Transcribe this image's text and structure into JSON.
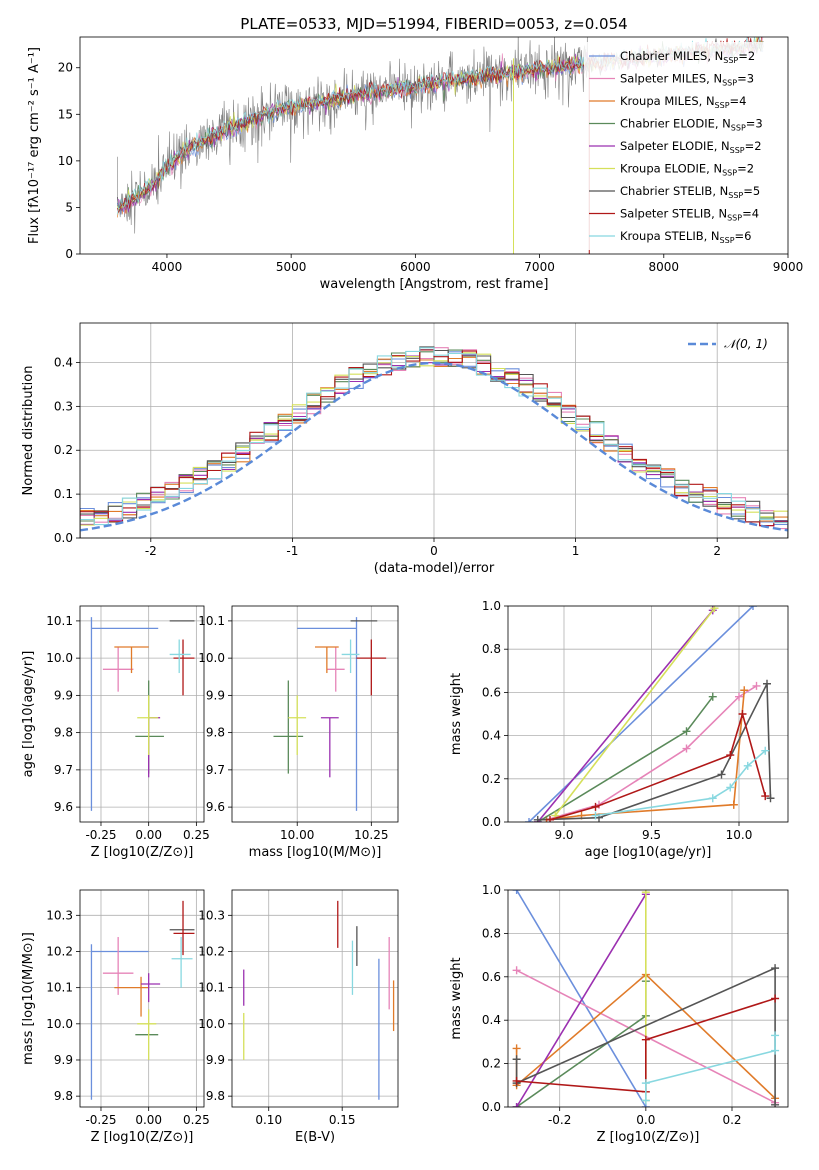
{
  "title": "PLATE=0533, MJD=51994, FIBERID=0053, z=0.054",
  "colors": {
    "Chabrier MILES": "#6b8fdc",
    "Salpeter MILES": "#e684b8",
    "Kroupa MILES": "#e07b2a",
    "Chabrier ELODIE": "#5a8a5a",
    "Salpeter ELODIE": "#9b30b0",
    "Kroupa ELODIE": "#d5e05a",
    "Chabrier STELIB": "#555555",
    "Salpeter STELIB": "#b01818",
    "Kroupa STELIB": "#88d8e0",
    "normal": "#5a8ad8",
    "data": "#808080"
  },
  "chart_data": [
    {
      "id": "spectrum",
      "type": "line",
      "xlabel": "wavelength [Angstrom, rest frame]",
      "ylabel": "Flux [fλ10⁻¹⁷ erg cm⁻² s⁻¹ A⁻¹]",
      "xlim": [
        3300,
        9000
      ],
      "ylim": [
        0,
        23.3
      ],
      "xticks": [
        4000,
        5000,
        6000,
        7000,
        8000,
        9000
      ],
      "yticks": [
        0,
        5,
        10,
        15,
        20
      ],
      "legend_position": "right",
      "legend": [
        {
          "name": "Chabrier MILES",
          "nssp": 2
        },
        {
          "name": "Salpeter MILES",
          "nssp": 3
        },
        {
          "name": "Kroupa MILES",
          "nssp": 4
        },
        {
          "name": "Chabrier ELODIE",
          "nssp": 3
        },
        {
          "name": "Salpeter ELODIE",
          "nssp": 2
        },
        {
          "name": "Kroupa ELODIE",
          "nssp": 2
        },
        {
          "name": "Chabrier STELIB",
          "nssp": 5
        },
        {
          "name": "Salpeter STELIB",
          "nssp": 4
        },
        {
          "name": "Kroupa STELIB",
          "nssp": 6
        }
      ],
      "continuum": {
        "x": [
          3600,
          3750,
          3900,
          4000,
          4200,
          4500,
          4800,
          5000,
          5300,
          5600,
          6000,
          6300,
          6600,
          7000,
          7400,
          8000,
          8500,
          8800
        ],
        "y": [
          5.0,
          6.0,
          7.5,
          9.5,
          11.5,
          13.5,
          15.0,
          15.8,
          16.5,
          17.2,
          18.0,
          18.6,
          19.2,
          19.8,
          20.5,
          21.3,
          22.0,
          22.5
        ]
      },
      "data_range": [
        3600,
        7400
      ],
      "model_range": [
        3600,
        8800
      ]
    },
    {
      "id": "residuals",
      "type": "histogram",
      "xlabel": "(data-model)/error",
      "ylabel": "Normed distribution",
      "xlim": [
        -2.5,
        2.5
      ],
      "ylim": [
        0,
        0.49
      ],
      "xticks": [
        -2,
        -1,
        0,
        1,
        2
      ],
      "yticks": [
        0.0,
        0.1,
        0.2,
        0.3,
        0.4
      ],
      "legend_label": "𝒩(0, 1)",
      "legend_position": "top-right",
      "bin_start": -2.5,
      "bin_width": 0.1
    },
    {
      "id": "age_vs_Z",
      "type": "errorbar",
      "xlabel": "Z [log10(Z/Z⊙)]",
      "ylabel": "age [log10(age/yr)]",
      "xlim": [
        -0.36,
        0.29
      ],
      "ylim": [
        9.56,
        10.14
      ],
      "xticks": [
        -0.25,
        0.0,
        0.25
      ],
      "yticks": [
        9.6,
        9.7,
        9.8,
        9.9,
        10.0,
        10.1
      ],
      "points": [
        {
          "model": "Chabrier MILES",
          "x": -0.3,
          "y": 10.08,
          "xerr": [
            0.0,
            0.0
          ],
          "yerr": [
            0.49,
            0.03
          ]
        },
        {
          "model": "Chabrier MILES",
          "x": 0.0,
          "y": 10.08,
          "xerr": [
            0.3,
            0.05
          ],
          "yerr": [
            0.0,
            0.0
          ]
        },
        {
          "model": "Salpeter MILES",
          "x": -0.16,
          "y": 9.97,
          "xerr": [
            0.08,
            0.08
          ],
          "yerr": [
            0.06,
            0.06
          ]
        },
        {
          "model": "Kroupa MILES",
          "x": -0.09,
          "y": 10.03,
          "xerr": [
            0.09,
            0.09
          ],
          "yerr": [
            0.07,
            0.0
          ]
        },
        {
          "model": "Chabrier ELODIE",
          "x": 0.0,
          "y": 9.79,
          "xerr": [
            0.07,
            0.08
          ],
          "yerr": [
            0.1,
            0.15
          ]
        },
        {
          "model": "Salpeter ELODIE",
          "x": 0.0,
          "y": 9.84,
          "xerr": [
            0.0,
            0.06
          ],
          "yerr": [
            0.16,
            0.0
          ]
        },
        {
          "model": "Kroupa ELODIE",
          "x": 0.0,
          "y": 9.84,
          "xerr": [
            0.06,
            0.05
          ],
          "yerr": [
            0.1,
            0.06
          ]
        },
        {
          "model": "Chabrier STELIB",
          "x": 0.18,
          "y": 10.1,
          "xerr": [
            0.07,
            0.06
          ],
          "yerr": [
            0.0,
            0.0
          ]
        },
        {
          "model": "Salpeter STELIB",
          "x": 0.18,
          "y": 10.0,
          "xerr": [
            0.05,
            0.06
          ],
          "yerr": [
            0.1,
            0.05
          ]
        },
        {
          "model": "Kroupa STELIB",
          "x": 0.16,
          "y": 10.01,
          "xerr": [
            0.05,
            0.06
          ],
          "yerr": [
            0.05,
            0.04
          ]
        }
      ]
    },
    {
      "id": "age_vs_mass",
      "type": "errorbar",
      "xlabel": "mass [log10(M/M⊙)]",
      "xlim": [
        9.78,
        10.34
      ],
      "ylim": [
        9.56,
        10.14
      ],
      "xticks": [
        10.0,
        10.25
      ],
      "yticks": [
        9.6,
        9.7,
        9.8,
        9.9,
        10.0,
        10.1
      ],
      "points": [
        {
          "model": "Chabrier MILES",
          "x": 10.2,
          "y": 10.08,
          "xerr": [
            0.2,
            0.0
          ],
          "yerr": [
            0.49,
            0.03
          ]
        },
        {
          "model": "Salpeter MILES",
          "x": 10.13,
          "y": 9.97,
          "xerr": [
            0.03,
            0.03
          ],
          "yerr": [
            0.06,
            0.06
          ]
        },
        {
          "model": "Kroupa MILES",
          "x": 10.1,
          "y": 10.03,
          "xerr": [
            0.04,
            0.04
          ],
          "yerr": [
            0.07,
            0.0
          ]
        },
        {
          "model": "Chabrier ELODIE",
          "x": 9.97,
          "y": 9.79,
          "xerr": [
            0.05,
            0.05
          ],
          "yerr": [
            0.1,
            0.15
          ]
        },
        {
          "model": "Salpeter ELODIE",
          "x": 10.11,
          "y": 9.84,
          "xerr": [
            0.03,
            0.03
          ],
          "yerr": [
            0.16,
            0.0
          ]
        },
        {
          "model": "Kroupa ELODIE",
          "x": 10.0,
          "y": 9.84,
          "xerr": [
            0.03,
            0.03
          ],
          "yerr": [
            0.1,
            0.06
          ]
        },
        {
          "model": "Chabrier STELIB",
          "x": 10.22,
          "y": 10.1,
          "xerr": [
            0.04,
            0.05
          ],
          "yerr": [
            0.0,
            0.0
          ]
        },
        {
          "model": "Salpeter STELIB",
          "x": 10.25,
          "y": 10.0,
          "xerr": [
            0.05,
            0.05
          ],
          "yerr": [
            0.1,
            0.05
          ]
        },
        {
          "model": "Kroupa STELIB",
          "x": 10.18,
          "y": 10.01,
          "xerr": [
            0.03,
            0.03
          ],
          "yerr": [
            0.05,
            0.04
          ]
        }
      ]
    },
    {
      "id": "weight_vs_age",
      "type": "line",
      "xlabel": "age [log10(age/yr)]",
      "ylabel": "mass weight",
      "xlim": [
        8.68,
        10.28
      ],
      "ylim": [
        0,
        1.0
      ],
      "xticks": [
        9.0,
        9.5,
        10.0
      ],
      "yticks": [
        0.0,
        0.2,
        0.4,
        0.6,
        0.8,
        1.0
      ],
      "series": [
        {
          "model": "Chabrier MILES",
          "x": [
            8.8,
            10.08
          ],
          "y": [
            0.0,
            1.0
          ]
        },
        {
          "model": "Salpeter MILES",
          "x": [
            8.9,
            9.2,
            9.7,
            10.0,
            10.1
          ],
          "y": [
            0.01,
            0.08,
            0.34,
            0.58,
            0.63
          ]
        },
        {
          "model": "Kroupa MILES",
          "x": [
            8.9,
            9.1,
            9.97,
            10.03,
            9.97
          ],
          "y": [
            0.01,
            0.03,
            0.08,
            0.61,
            0.08
          ]
        },
        {
          "model": "Chabrier ELODIE",
          "x": [
            8.85,
            9.7,
            9.85
          ],
          "y": [
            0.0,
            0.42,
            0.58
          ]
        },
        {
          "model": "Salpeter ELODIE",
          "x": [
            8.85,
            9.85
          ],
          "y": [
            0.0,
            0.98
          ]
        },
        {
          "model": "Kroupa ELODIE",
          "x": [
            8.95,
            9.86
          ],
          "y": [
            0.03,
            0.99
          ]
        },
        {
          "model": "Chabrier STELIB",
          "x": [
            8.85,
            9.2,
            9.9,
            10.16,
            10.18
          ],
          "y": [
            0.01,
            0.02,
            0.22,
            0.64,
            0.11
          ]
        },
        {
          "model": "Salpeter STELIB",
          "x": [
            8.92,
            9.18,
            9.95,
            10.02,
            10.15
          ],
          "y": [
            0.01,
            0.07,
            0.31,
            0.5,
            0.12
          ]
        },
        {
          "model": "Kroupa STELIB",
          "x": [
            9.18,
            9.85,
            9.95,
            10.05,
            10.15
          ],
          "y": [
            0.03,
            0.11,
            0.16,
            0.26,
            0.33
          ]
        }
      ]
    },
    {
      "id": "mass_vs_Z",
      "type": "errorbar",
      "xlabel": "Z [log10(Z/Z⊙)]",
      "ylabel": "mass [log10(M/M⊙)]",
      "xlim": [
        -0.36,
        0.29
      ],
      "ylim": [
        9.77,
        10.37
      ],
      "xticks": [
        -0.25,
        0.0,
        0.25
      ],
      "yticks": [
        9.8,
        9.9,
        10.0,
        10.1,
        10.2,
        10.3
      ],
      "points": [
        {
          "model": "Chabrier MILES",
          "x": -0.3,
          "y": 10.2,
          "xerr": [
            0.0,
            0.3
          ],
          "yerr": [
            0.41,
            0.02
          ]
        },
        {
          "model": "Salpeter MILES",
          "x": -0.16,
          "y": 10.14,
          "xerr": [
            0.08,
            0.08
          ],
          "yerr": [
            0.06,
            0.1
          ]
        },
        {
          "model": "Kroupa MILES",
          "x": -0.09,
          "y": 10.1,
          "xerr": [
            0.09,
            0.09
          ],
          "yerr": [
            0.0,
            0.0
          ]
        },
        {
          "model": "Kroupa MILES",
          "x": -0.04,
          "y": 10.1,
          "xerr": [
            0.0,
            0.0
          ],
          "yerr": [
            0.08,
            0.03
          ]
        },
        {
          "model": "Chabrier ELODIE",
          "x": 0.0,
          "y": 9.97,
          "xerr": [
            0.07,
            0.05
          ],
          "yerr": [
            0.0,
            0.0
          ]
        },
        {
          "model": "Salpeter ELODIE",
          "x": 0.0,
          "y": 10.11,
          "xerr": [
            0.04,
            0.06
          ],
          "yerr": [
            0.05,
            0.03
          ]
        },
        {
          "model": "Kroupa ELODIE",
          "x": 0.0,
          "y": 10.0,
          "xerr": [
            0.06,
            0.04
          ],
          "yerr": [
            0.1,
            0.04
          ]
        },
        {
          "model": "Chabrier STELIB",
          "x": 0.18,
          "y": 10.26,
          "xerr": [
            0.07,
            0.06
          ],
          "yerr": [
            0.0,
            0.0
          ]
        },
        {
          "model": "Salpeter STELIB",
          "x": 0.18,
          "y": 10.25,
          "xerr": [
            0.05,
            0.06
          ],
          "yerr": [
            0.06,
            0.09
          ]
        },
        {
          "model": "Kroupa STELIB",
          "x": 0.17,
          "y": 10.18,
          "xerr": [
            0.05,
            0.06
          ],
          "yerr": [
            0.08,
            0.06
          ]
        }
      ]
    },
    {
      "id": "mass_vs_ebv",
      "type": "errorbar",
      "xlabel": "E(B-V)",
      "xlim": [
        0.075,
        0.188
      ],
      "ylim": [
        9.77,
        10.37
      ],
      "xticks": [
        0.1,
        0.15
      ],
      "yticks": [
        9.8,
        9.9,
        10.0,
        10.1,
        10.2,
        10.3
      ],
      "points": [
        {
          "model": "Chabrier MILES",
          "x": 0.175,
          "y": 10.0,
          "xerr": [
            0.0,
            0.0
          ],
          "yerr": [
            0.21,
            0.18
          ]
        },
        {
          "model": "Salpeter MILES",
          "x": 0.182,
          "y": 10.14,
          "xerr": [
            0.0,
            0.0
          ],
          "yerr": [
            0.1,
            0.1
          ]
        },
        {
          "model": "Kroupa MILES",
          "x": 0.185,
          "y": 10.05,
          "xerr": [
            0.0,
            0.0
          ],
          "yerr": [
            0.07,
            0.07
          ]
        },
        {
          "model": "Salpeter ELODIE",
          "x": 0.083,
          "y": 10.1,
          "xerr": [
            0.0,
            0.0
          ],
          "yerr": [
            0.05,
            0.05
          ]
        },
        {
          "model": "Kroupa ELODIE",
          "x": 0.083,
          "y": 9.96,
          "xerr": [
            0.0,
            0.0
          ],
          "yerr": [
            0.06,
            0.07
          ]
        },
        {
          "model": "Salpeter STELIB",
          "x": 0.147,
          "y": 10.27,
          "xerr": [
            0.0,
            0.0
          ],
          "yerr": [
            0.06,
            0.07
          ]
        },
        {
          "model": "Chabrier STELIB",
          "x": 0.16,
          "y": 10.21,
          "xerr": [
            0.0,
            0.0
          ],
          "yerr": [
            0.05,
            0.06
          ]
        },
        {
          "model": "Kroupa STELIB",
          "x": 0.157,
          "y": 10.17,
          "xerr": [
            0.0,
            0.0
          ],
          "yerr": [
            0.09,
            0.06
          ]
        }
      ]
    },
    {
      "id": "weight_vs_Z",
      "type": "line",
      "xlabel": "Z [log10(Z/Z⊙)]",
      "ylabel": "mass weight",
      "xlim": [
        -0.32,
        0.33
      ],
      "ylim": [
        0,
        1.0
      ],
      "xticks": [
        -0.2,
        0.0,
        0.2
      ],
      "yticks": [
        0.0,
        0.2,
        0.4,
        0.6,
        0.8,
        1.0
      ],
      "series": [
        {
          "model": "Chabrier MILES",
          "x": [
            -0.3,
            0.0
          ],
          "y": [
            1.0,
            0.0
          ]
        },
        {
          "model": "Salpeter MILES",
          "x": [
            -0.3,
            0.3
          ],
          "y": [
            0.63,
            0.02
          ]
        },
        {
          "model": "Kroupa MILES",
          "x": [
            -0.3,
            -0.3,
            0.0,
            0.3
          ],
          "y": [
            0.27,
            0.1,
            0.61,
            0.04
          ]
        },
        {
          "model": "Chabrier ELODIE",
          "x": [
            -0.3,
            0.0,
            0.0
          ],
          "y": [
            0.0,
            0.42,
            0.58
          ]
        },
        {
          "model": "Salpeter ELODIE",
          "x": [
            -0.3,
            0.0
          ],
          "y": [
            0.0,
            0.98
          ]
        },
        {
          "model": "Kroupa ELODIE",
          "x": [
            0.0,
            0.0
          ],
          "y": [
            0.03,
            0.99
          ]
        },
        {
          "model": "Chabrier STELIB",
          "x": [
            -0.3,
            -0.3,
            0.3,
            0.3
          ],
          "y": [
            0.22,
            0.11,
            0.64,
            0.01
          ]
        },
        {
          "model": "Salpeter STELIB",
          "x": [
            -0.3,
            0.0,
            0.0,
            0.3
          ],
          "y": [
            0.12,
            0.07,
            0.31,
            0.5
          ]
        },
        {
          "model": "Kroupa STELIB",
          "x": [
            0.0,
            0.0,
            0.3,
            0.3
          ],
          "y": [
            0.03,
            0.11,
            0.26,
            0.33
          ]
        }
      ]
    }
  ]
}
